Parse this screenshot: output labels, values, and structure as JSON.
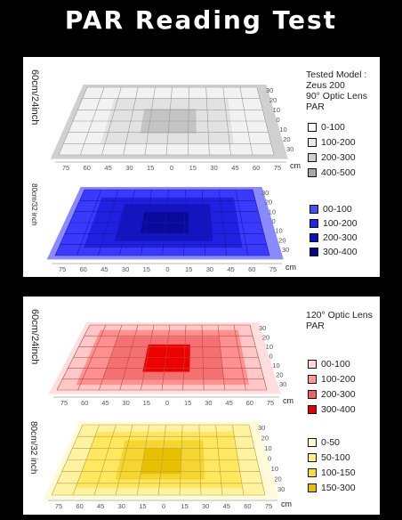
{
  "title": "PAR Reading Test",
  "panel_top": {
    "distance_upper": "60cm/24inch",
    "distance_lower": "80cm/32 inch",
    "legend_header": [
      "Tested Model :",
      "Zeus 200",
      "90°  Optic Lens",
      "PAR"
    ],
    "legend_upper": [
      "0-100",
      "100-200",
      "200-300",
      "400-500"
    ],
    "legend_lower": [
      "00-100",
      "100-200",
      "200-300",
      "300-400"
    ],
    "colors_upper": [
      "#ffffff",
      "#eaeaea",
      "#cfcfcf",
      "#a8a8a8"
    ],
    "colors_lower": [
      "#4a4aff",
      "#2222e8",
      "#1010b8",
      "#06068a"
    ]
  },
  "panel_bottom": {
    "distance_upper": "60cm/24inch",
    "distance_lower": "80cm/32 inch",
    "legend_header": [
      "120°  Optic Lens",
      "PAR"
    ],
    "legend_upper": [
      "00-100",
      "100-200",
      "200-300",
      "300-400"
    ],
    "legend_lower": [
      "0-50",
      "50-100",
      "100-150",
      "150-300"
    ],
    "colors_upper": [
      "#ffd6d6",
      "#ff9a9a",
      "#f06060",
      "#e00000"
    ],
    "colors_lower": [
      "#fffbd0",
      "#fff078",
      "#f8dc30",
      "#e8c000"
    ]
  },
  "x_ticks": [
    "75",
    "60",
    "45",
    "30",
    "15",
    "0",
    "15",
    "30",
    "45",
    "60",
    "75"
  ],
  "y_ticks": [
    "30",
    "20",
    "10",
    "0",
    "10",
    "20",
    "30"
  ],
  "unit": "cm",
  "icons": [
    "legend-swatch"
  ]
}
